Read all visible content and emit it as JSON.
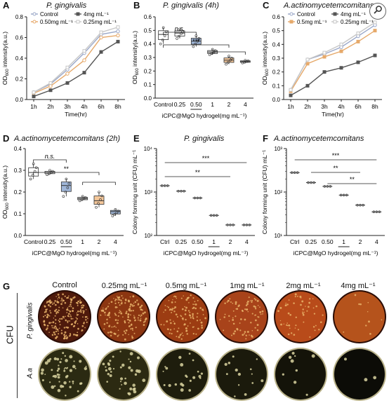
{
  "search_icon": "search-icon",
  "chart_data": [
    {
      "id": "A",
      "type": "line",
      "title": "P. gingivalis",
      "xlabel": "Time(hr)",
      "ylabel": "OD600 intensity(a.u.)",
      "categories": [
        "1h",
        "2h",
        "3h",
        "4h",
        "6h",
        "8h"
      ],
      "ylim": [
        0,
        0.8
      ],
      "yticks": [
        "0.0",
        "0.2",
        "0.4",
        "0.6",
        "0.8"
      ],
      "legend": "top-left",
      "series": [
        {
          "name": "Control",
          "color": "#9aa7c8",
          "marker": "o",
          "values": [
            0.07,
            0.15,
            0.29,
            0.45,
            0.63,
            0.66
          ]
        },
        {
          "name": "0.50mg mL⁻¹",
          "color": "#e6a96a",
          "marker": "o",
          "values": [
            0.06,
            0.13,
            0.25,
            0.38,
            0.6,
            0.62
          ]
        },
        {
          "name": "4mg mL⁻¹",
          "color": "#555555",
          "marker": "s",
          "values": [
            0.03,
            0.09,
            0.16,
            0.26,
            0.46,
            0.56
          ]
        },
        {
          "name": "0.25mg mL⁻¹",
          "color": "#c7c7c7",
          "marker": "s",
          "values": [
            0.07,
            0.16,
            0.31,
            0.47,
            0.65,
            0.7
          ]
        }
      ]
    },
    {
      "id": "B",
      "type": "box",
      "title": "P. gingivalis (4h)",
      "xlabel": "iCPC@MgO hydrogel(mg mL⁻¹)",
      "ylabel": "OD600 intensity(a.u.)",
      "categories": [
        "Control",
        "0.25",
        "0.50",
        "1",
        "2",
        "4"
      ],
      "ylim": [
        0,
        0.6
      ],
      "yticks": [
        "0.0",
        "0.1",
        "0.2",
        "0.3",
        "0.4",
        "0.5",
        "0.6"
      ],
      "colors": [
        "#ffffff",
        "#ffffff",
        "#9fb6d8",
        "#dcdcdc",
        "#f4c79a",
        "#ffffff"
      ],
      "values": [
        0.47,
        0.48,
        0.42,
        0.34,
        0.28,
        0.27
      ],
      "ranges": [
        [
          0.4,
          0.52
        ],
        [
          0.44,
          0.51
        ],
        [
          0.38,
          0.46
        ],
        [
          0.32,
          0.36
        ],
        [
          0.25,
          0.31
        ],
        [
          0.26,
          0.28
        ]
      ],
      "annotations": [
        "n.s.",
        "***"
      ]
    },
    {
      "id": "C",
      "type": "line",
      "title": "A.actinomycetemcomitans",
      "xlabel": "Time(hr)",
      "ylabel": "OD600 intensity(a.u.)",
      "categories": [
        "1h",
        "2h",
        "3h",
        "4h",
        "6h",
        "8h"
      ],
      "ylim": [
        0,
        0.6
      ],
      "yticks": [
        "0.0",
        "0.1",
        "0.2",
        "0.3",
        "0.4",
        "0.5",
        "0.6"
      ],
      "legend": "top-left",
      "series": [
        {
          "name": "Control",
          "color": "#9aa7c8",
          "marker": "o",
          "values": [
            0.07,
            0.29,
            0.33,
            0.38,
            0.46,
            0.54
          ]
        },
        {
          "name": "0.5mg mL⁻¹",
          "color": "#e6a96a",
          "marker": "s",
          "values": [
            0.06,
            0.26,
            0.31,
            0.35,
            0.42,
            0.5
          ]
        },
        {
          "name": "4mg mL⁻¹",
          "color": "#555555",
          "marker": "s",
          "values": [
            0.03,
            0.1,
            0.2,
            0.23,
            0.27,
            0.32
          ]
        },
        {
          "name": "0.25mg mL⁻¹",
          "color": "#c7c7c7",
          "marker": "s",
          "values": [
            0.07,
            0.29,
            0.34,
            0.4,
            0.48,
            0.56
          ]
        }
      ]
    },
    {
      "id": "D",
      "type": "box",
      "title": "A.actinomycetemcomitans (2h)",
      "xlabel": "iCPC@MgO hydrogel(mg mL⁻¹)",
      "ylabel": "OD600 intensity(a.u.)",
      "categories": [
        "Control",
        "0.25",
        "0.50",
        "1",
        "2",
        "4"
      ],
      "ylim": [
        0,
        0.4
      ],
      "yticks": [
        "0.0",
        "0.1",
        "0.2",
        "0.3",
        "0.4"
      ],
      "colors": [
        "#ffffff",
        "#ffffff",
        "#9fb6d8",
        "#dcdcdc",
        "#f4c79a",
        "#9fb6d8"
      ],
      "values": [
        0.29,
        0.29,
        0.23,
        0.17,
        0.16,
        0.11
      ],
      "ranges": [
        [
          0.26,
          0.33
        ],
        [
          0.28,
          0.3
        ],
        [
          0.18,
          0.26
        ],
        [
          0.16,
          0.18
        ],
        [
          0.13,
          0.2
        ],
        [
          0.09,
          0.12
        ]
      ],
      "annotations": [
        "n.s.",
        "**"
      ]
    },
    {
      "id": "E",
      "type": "scatter",
      "title": "P. gingivalis",
      "xlabel": "iCPC@MgO hydrogel(mg mL⁻¹)",
      "ylabel": "Colony forming unit (CFU) mL⁻¹",
      "categories": [
        "Ctrl",
        "0.25",
        "0.50",
        "1",
        "2",
        "4"
      ],
      "yscale": "log",
      "ylim": [
        100,
        10000
      ],
      "yticks": [
        "10²",
        "10³",
        "10⁴"
      ],
      "values": [
        1400,
        1050,
        730,
        290,
        175,
        175
      ],
      "annotations": [
        "***",
        "**"
      ]
    },
    {
      "id": "F",
      "type": "scatter",
      "title": "A.actinomycetemcomitans",
      "xlabel": "iCPC@MgO hydrogel(mg mL⁻¹)",
      "ylabel": "Colony forming unit (CFU) mL⁻¹",
      "categories": [
        "Ctrl",
        "0.25",
        "0.50",
        "1",
        "2",
        "4"
      ],
      "yscale": "log",
      "ylim": [
        10,
        1000
      ],
      "yticks": [
        "10¹",
        "10²",
        "10³"
      ],
      "values": [
        280,
        165,
        135,
        85,
        50,
        35
      ],
      "annotations": [
        "***",
        "**",
        "**"
      ]
    }
  ],
  "panel_g": {
    "letter": "G",
    "columns": [
      "Control",
      "0.25mg mL⁻¹",
      "0.5mg mL⁻¹",
      "1mg mL⁻¹",
      "2mg mL⁻¹",
      "4mg mL⁻¹"
    ],
    "cfu_label": "CFU",
    "rows": [
      "P. gingivalis",
      "A.a"
    ],
    "dish_colors_top": [
      "#4e1a0c",
      "#8c3611",
      "#9c3c12",
      "#a8431a",
      "#b84b1a",
      "#b5531c"
    ],
    "dish_colors_bottom": [
      "#2b2a12",
      "#2c2a12",
      "#1e1d0d",
      "#1b1a0c",
      "#141309",
      "#0c0c07"
    ],
    "colony_counts_top": [
      220,
      160,
      110,
      80,
      55,
      10
    ],
    "colony_counts_bottom": [
      55,
      40,
      22,
      14,
      9,
      3
    ]
  }
}
